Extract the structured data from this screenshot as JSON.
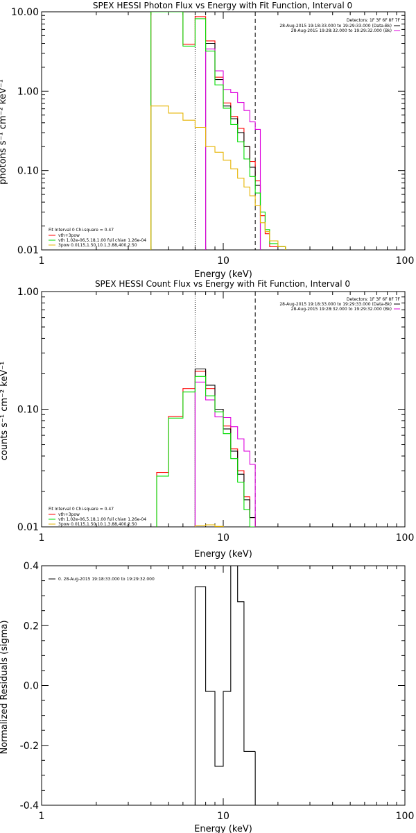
{
  "chart_data": [
    {
      "type": "line",
      "id": "photon",
      "title": "SPEX HESSI Photon Flux vs Energy with Fit Function, Interval 0",
      "xlabel": "Energy (keV)",
      "ylabel": "photons s⁻¹ cm⁻² keV⁻¹",
      "xscale": "log",
      "yscale": "log",
      "xlim": [
        1,
        100
      ],
      "ylim": [
        0.01,
        10
      ],
      "xticks": [
        "1",
        "10",
        "100"
      ],
      "yticks": [
        "10.00",
        "1.00",
        "0.10",
        "0.01"
      ],
      "header": [
        "Detectors: 1F 3F 6F 8F 7F",
        "28-Aug-2015 19:18:33.000 to 19:29:33.000 (Data-Bk)",
        "28-Aug-2015 19:28:32.000 to 19:29:32.000 (Bk)"
      ],
      "vlines": [
        {
          "x": 7.0,
          "style": "dotted"
        },
        {
          "x": 15.0,
          "style": "dashed"
        }
      ],
      "fit_legend": {
        "title": "Fit Interval 0   Chi-square = 0.47",
        "items": [
          {
            "label": "vth+3pow",
            "color": "#ff0000"
          },
          {
            "label": "vth 1.02e-06,5.18,1.00  full chian 1.26e-04",
            "color": "#00dd00"
          },
          {
            "label": "3pow 0.0115,1.50,10.1,3.88,400,2.50",
            "color": "#e6b400"
          }
        ]
      },
      "edges": [
        4.0,
        4.3,
        5.0,
        6.0,
        7.0,
        8.0,
        9.0,
        10.0,
        11.0,
        12.0,
        13.0,
        14.0,
        15.0,
        16.0,
        17.0,
        18.0,
        20.0,
        22.0
      ],
      "series": [
        {
          "color": "#ff0000",
          "values": [
            10.0,
            10.0,
            10.0,
            3.9,
            8.7,
            4.3,
            1.5,
            0.71,
            0.48,
            0.34,
            0.2,
            0.13,
            0.074,
            0.027,
            0.016,
            0.011,
            0.011
          ]
        },
        {
          "color": "#000000",
          "values": [
            null,
            null,
            null,
            null,
            null,
            4.0,
            1.4,
            0.65,
            0.45,
            0.3,
            0.2,
            0.11,
            0.065,
            null,
            null,
            null,
            null
          ]
        },
        {
          "color": "#dd00dd",
          "values": [
            null,
            null,
            null,
            null,
            null,
            3.4,
            1.8,
            1.05,
            0.96,
            0.72,
            0.57,
            0.41,
            0.33,
            null,
            null,
            null,
            null
          ]
        },
        {
          "color": "#00dd00",
          "values": [
            10.0,
            10.0,
            10.0,
            3.7,
            8.2,
            3.2,
            1.2,
            0.61,
            0.38,
            0.23,
            0.14,
            0.084,
            0.052,
            0.03,
            0.018,
            0.012,
            0.011
          ]
        },
        {
          "color": "#e6b400",
          "values": [
            0.65,
            0.65,
            0.53,
            0.43,
            0.35,
            0.2,
            0.17,
            0.135,
            0.105,
            0.08,
            0.062,
            0.048,
            0.036,
            0.022,
            0.017,
            0.013,
            0.011
          ]
        }
      ]
    },
    {
      "type": "line",
      "id": "count",
      "title": "SPEX HESSI Count Flux vs Energy with Fit Function, Interval 0",
      "xlabel": "Energy (keV)",
      "ylabel": "counts s⁻¹ cm⁻² keV⁻¹",
      "xscale": "log",
      "yscale": "log",
      "xlim": [
        1,
        100
      ],
      "ylim": [
        0.01,
        1
      ],
      "xticks": [
        "1",
        "10",
        "100"
      ],
      "yticks": [
        "1.00",
        "0.10",
        "0.01"
      ],
      "header": [
        "Detectors: 1F 3F 6F 8F 7F",
        "28-Aug-2015 19:18:33.000 to 19:29:33.000 (Data-Bk)",
        "28-Aug-2015 19:28:32.000 to 19:29:32.000 (Bk)"
      ],
      "vlines": [
        {
          "x": 7.0,
          "style": "dotted"
        },
        {
          "x": 15.0,
          "style": "dashed"
        }
      ],
      "fit_legend": {
        "title": "Fit Interval 0   Chi-square = 0.47",
        "items": [
          {
            "label": "vth+3pow",
            "color": "#ff0000"
          },
          {
            "label": "vth 1.02e-06,5.18,1.00  full chian 1.26e-04",
            "color": "#00dd00"
          },
          {
            "label": "3pow 0.0115,1.50,10.1,3.88,400,2.50",
            "color": "#e6b400"
          }
        ]
      },
      "edges": [
        4.3,
        5.0,
        6.0,
        7.0,
        8.0,
        9.0,
        10.0,
        11.0,
        12.0,
        13.0,
        14.0,
        15.0
      ],
      "series": [
        {
          "color": "#ff0000",
          "values": [
            0.029,
            0.087,
            0.15,
            0.21,
            0.15,
            0.1,
            0.072,
            0.046,
            0.03,
            0.018,
            0.012
          ]
        },
        {
          "color": "#000000",
          "values": [
            null,
            null,
            null,
            0.22,
            0.16,
            0.1,
            0.068,
            0.044,
            0.028,
            0.017,
            0.012
          ]
        },
        {
          "color": "#dd00dd",
          "values": [
            null,
            null,
            null,
            0.17,
            0.12,
            0.086,
            0.085,
            0.071,
            0.056,
            0.044,
            0.034
          ]
        },
        {
          "color": "#00dd00",
          "values": [
            0.027,
            0.084,
            0.14,
            0.19,
            0.13,
            0.095,
            0.062,
            0.038,
            0.024,
            0.014,
            0.01
          ]
        },
        {
          "color": "#e6b400",
          "values": [
            null,
            null,
            null,
            0.0102,
            0.0104,
            0.0101,
            null,
            null,
            null,
            null,
            null
          ]
        }
      ]
    },
    {
      "type": "line",
      "id": "resid",
      "title": "",
      "xlabel": "Energy (keV)",
      "ylabel": "Normalized Residuals (sigma)",
      "xscale": "log",
      "yscale": "linear",
      "xlim": [
        1,
        100
      ],
      "ylim": [
        -0.4,
        0.4
      ],
      "xticks": [
        "1",
        "10",
        "100"
      ],
      "yticks": [
        "0.4",
        "0.2",
        "0.0",
        "-0.2",
        "-0.4"
      ],
      "legend": [
        {
          "label": "0. 28-Aug-2015 19:18:33.000 to 19:29:32.000",
          "color": "#000000"
        }
      ],
      "edges": [
        7.0,
        8.0,
        9.0,
        10.0,
        11.0,
        12.0,
        13.0,
        14.0,
        15.0
      ],
      "series": [
        {
          "color": "#000000",
          "values": [
            0.33,
            -0.02,
            -0.27,
            -0.02,
            0.4,
            0.28,
            -0.22,
            -0.22
          ]
        }
      ]
    }
  ]
}
